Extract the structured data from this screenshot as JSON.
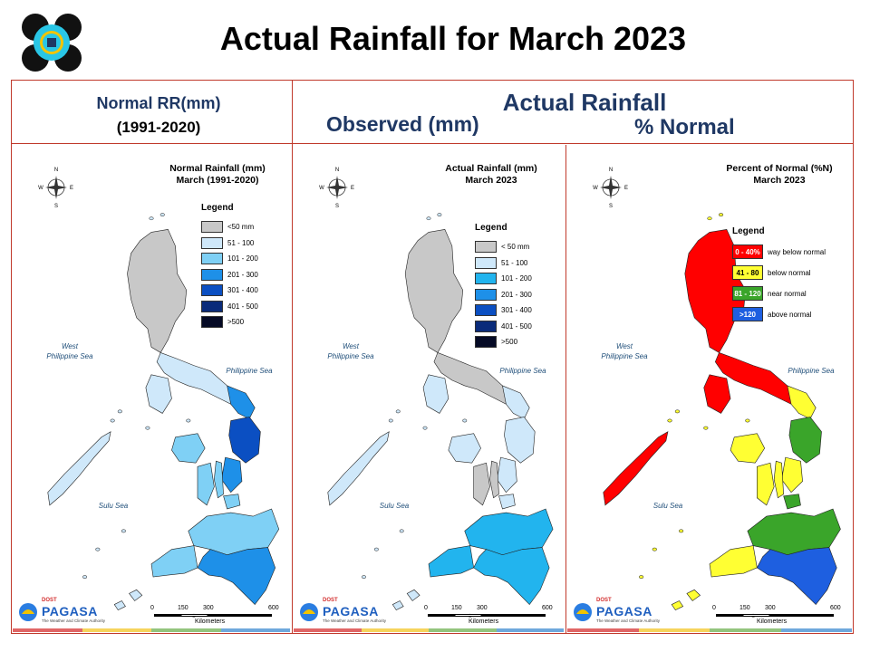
{
  "slide": {
    "title": "Actual Rainfall for March 2023"
  },
  "headers": {
    "left_line1": "Normal RR(mm)",
    "left_line2": "(1991-2020)",
    "actual_rainfall": "Actual Rainfall",
    "observed": "Observed (mm)",
    "percent_normal": "% Normal"
  },
  "panels": [
    {
      "title_line1": "Normal Rainfall (mm)",
      "title_line2": "March (1991-2020)",
      "legend_title": "Legend",
      "legend": [
        {
          "label": "<50 mm",
          "color": "#c8c8c8",
          "swatch_text": ""
        },
        {
          "label": "51 - 100",
          "color": "#cfe8fa",
          "swatch_text": ""
        },
        {
          "label": "101 - 200",
          "color": "#7fd0f5",
          "swatch_text": ""
        },
        {
          "label": "201 - 300",
          "color": "#1e90e8",
          "swatch_text": ""
        },
        {
          "label": "301 - 400",
          "color": "#0b4fc2",
          "swatch_text": ""
        },
        {
          "label": "401 - 500",
          "color": "#0a2b7a",
          "swatch_text": ""
        },
        {
          "label": ">500",
          "color": "#050a25",
          "swatch_text": ""
        }
      ],
      "sea_west_1": "West",
      "sea_west_2": "Philippine Sea",
      "sea_east": "Philippine Sea",
      "sea_sulu": "Sulu Sea",
      "scale_ticks": [
        "0",
        "150",
        "300",
        "600"
      ],
      "scale_unit": "Kilometers"
    },
    {
      "title_line1": "Actual Rainfall (mm)",
      "title_line2": "March 2023",
      "legend_title": "Legend",
      "legend": [
        {
          "label": "< 50 mm",
          "color": "#c8c8c8",
          "swatch_text": ""
        },
        {
          "label": "51 - 100",
          "color": "#cfe8fa",
          "swatch_text": ""
        },
        {
          "label": "101 - 200",
          "color": "#22b4ee",
          "swatch_text": ""
        },
        {
          "label": "201 - 300",
          "color": "#1e90e8",
          "swatch_text": ""
        },
        {
          "label": "301 - 400",
          "color": "#0b4fc2",
          "swatch_text": ""
        },
        {
          "label": "401 - 500",
          "color": "#0a2b7a",
          "swatch_text": ""
        },
        {
          "label": ">500",
          "color": "#050a25",
          "swatch_text": ""
        }
      ],
      "sea_west_1": "West",
      "sea_west_2": "Philippine Sea",
      "sea_east": "Philippine Sea",
      "sea_sulu": "Sulu Sea",
      "scale_ticks": [
        "0",
        "150",
        "300",
        "600"
      ],
      "scale_unit": "Kilometers"
    },
    {
      "title_line1": "Percent of Normal (%N)",
      "title_line2": "March 2023",
      "legend_title": "Legend",
      "legend": [
        {
          "label": "way below normal",
          "color": "#ff0000",
          "swatch_text": "0 - 40%"
        },
        {
          "label": "below normal",
          "color": "#ffff33",
          "swatch_text": "41 - 80"
        },
        {
          "label": "near normal",
          "color": "#3aa52a",
          "swatch_text": "81 - 120"
        },
        {
          "label": "above normal",
          "color": "#1e5fe0",
          "swatch_text": ">120"
        }
      ],
      "sea_west_1": "West",
      "sea_west_2": "Philippine Sea",
      "sea_east": "Philippine Sea",
      "sea_sulu": "Sulu Sea",
      "scale_ticks": [
        "0",
        "150",
        "300",
        "600"
      ],
      "scale_unit": "Kilometers"
    }
  ],
  "branding": {
    "dost": "DOST",
    "pagasa": "PAGASA",
    "tagline": "The Weather and Climate Authority"
  },
  "colors": {
    "frame": "#c0392b",
    "header_text": "#1f3864",
    "bottom_bar": [
      "#e06666",
      "#f6d45c",
      "#93c47d",
      "#6fa8dc"
    ]
  }
}
